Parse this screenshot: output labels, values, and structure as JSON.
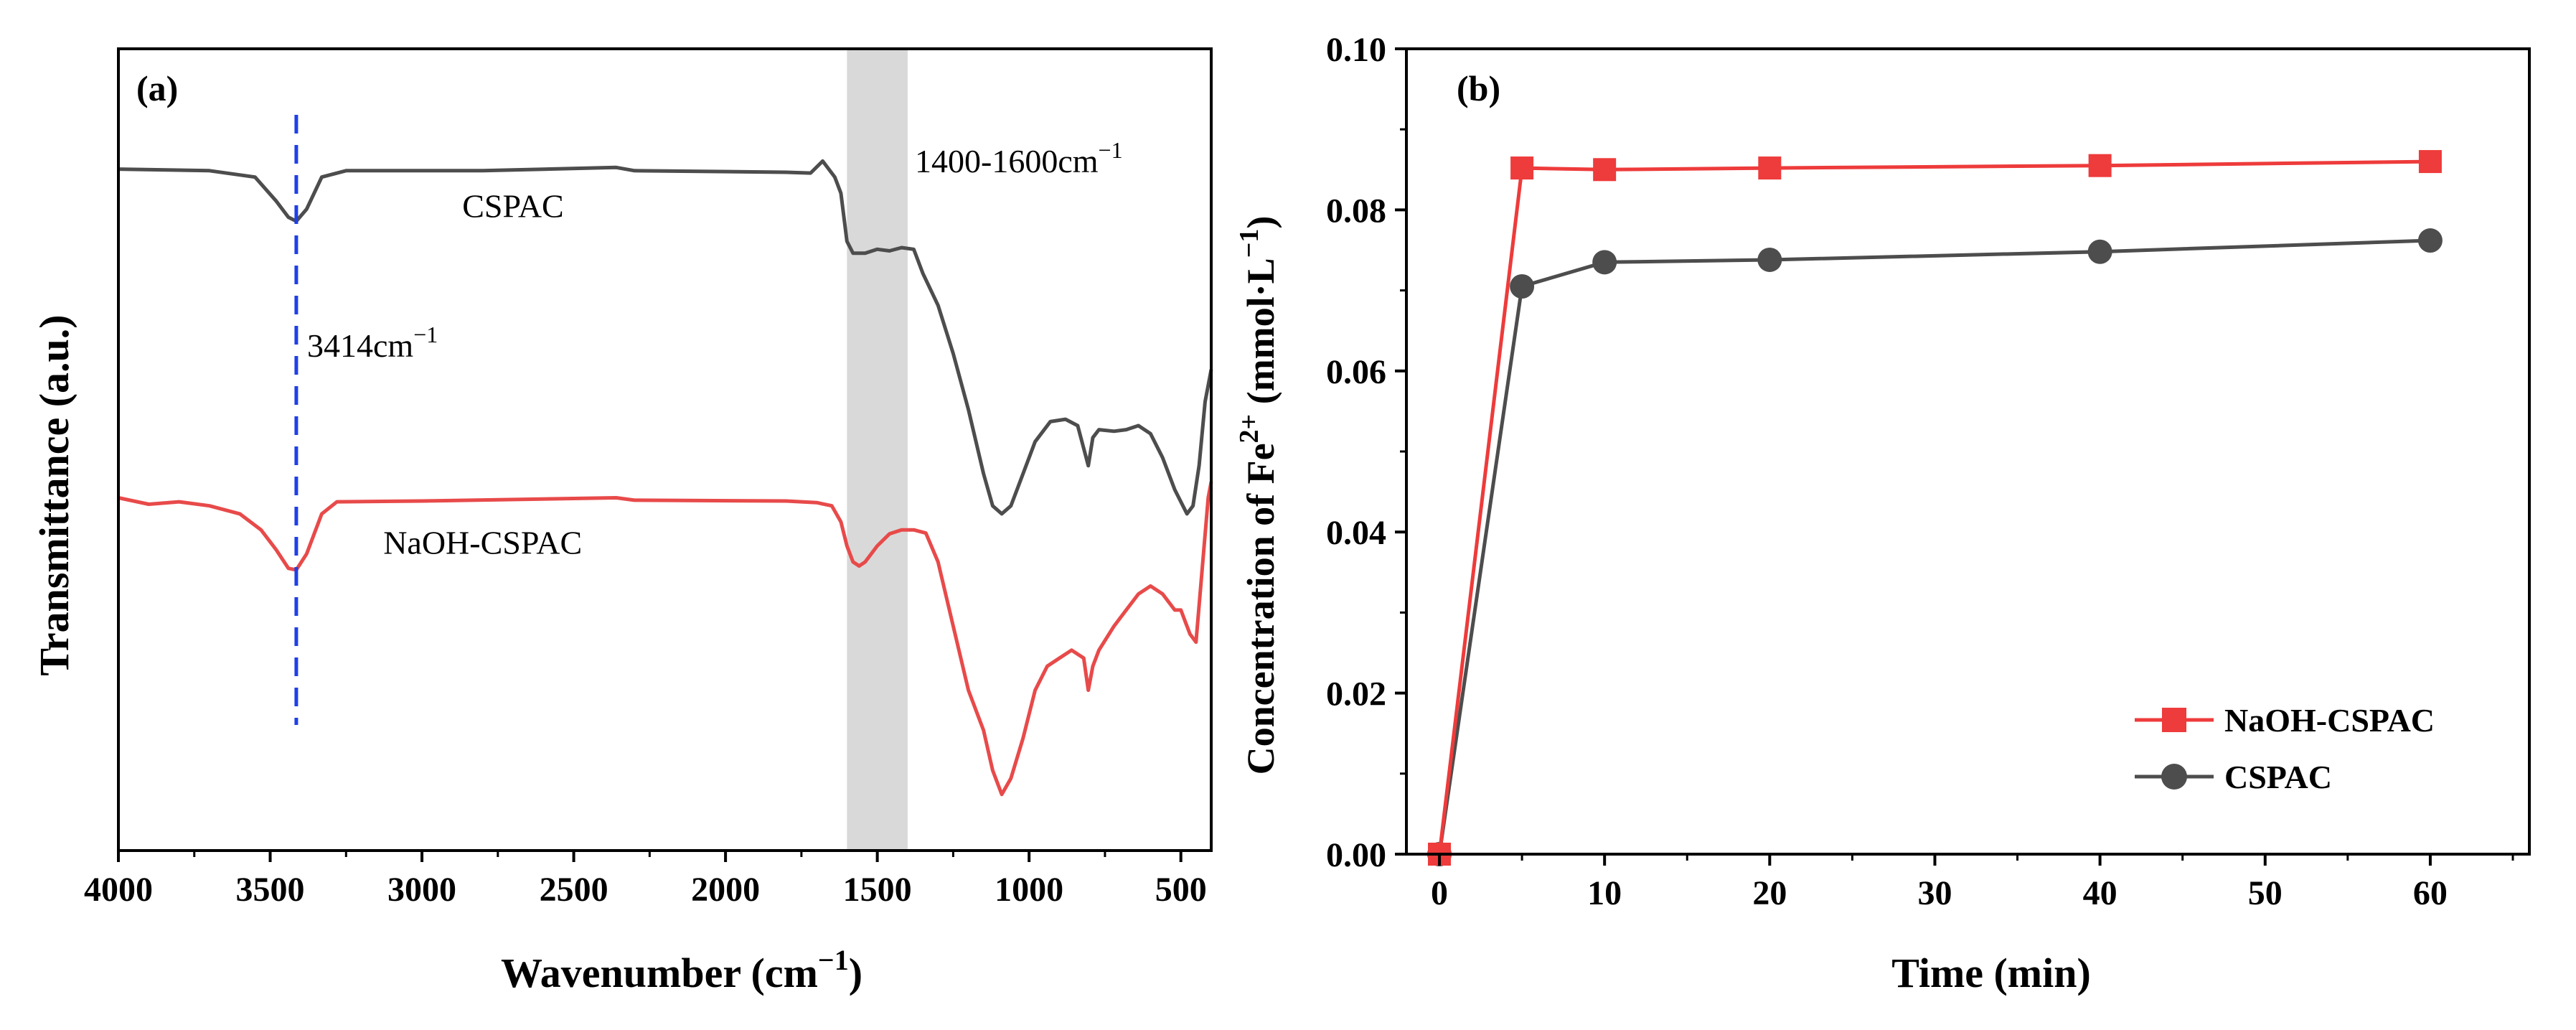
{
  "chart_data": [
    {
      "type": "line",
      "panel_label": "(a)",
      "xlabel": "Wavenumber (cm",
      "xlabel_sup": "−1",
      "xlabel_end": ")",
      "ylabel": "Transmittance (a.u.)",
      "xlim": [
        4000,
        400
      ],
      "x_reversed": true,
      "xticks": [
        4000,
        3500,
        3000,
        2500,
        2000,
        1500,
        1000,
        500
      ],
      "yticks_shown": false,
      "shaded_band": {
        "x_from": 1600,
        "x_to": 1400,
        "color": "#d9d9d9",
        "label": "1400-1600cm",
        "label_sup": "−1"
      },
      "marker_line": {
        "x": 3414,
        "color": "#1f3fe6",
        "style": "dashed",
        "label": "3414cm",
        "label_sup": "−1"
      },
      "series": [
        {
          "name": "CSPAC",
          "color": "#4d4d4d",
          "points": [
            [
              4000,
              0.85
            ],
            [
              3700,
              0.848
            ],
            [
              3550,
              0.84
            ],
            [
              3480,
              0.81
            ],
            [
              3440,
              0.79
            ],
            [
              3414,
              0.785
            ],
            [
              3380,
              0.8
            ],
            [
              3330,
              0.84
            ],
            [
              3250,
              0.848
            ],
            [
              2800,
              0.848
            ],
            [
              2360,
              0.852
            ],
            [
              2300,
              0.848
            ],
            [
              1800,
              0.846
            ],
            [
              1720,
              0.845
            ],
            [
              1680,
              0.86
            ],
            [
              1640,
              0.84
            ],
            [
              1620,
              0.82
            ],
            [
              1600,
              0.76
            ],
            [
              1580,
              0.745
            ],
            [
              1540,
              0.745
            ],
            [
              1500,
              0.75
            ],
            [
              1460,
              0.748
            ],
            [
              1420,
              0.752
            ],
            [
              1380,
              0.75
            ],
            [
              1350,
              0.72
            ],
            [
              1300,
              0.68
            ],
            [
              1250,
              0.62
            ],
            [
              1200,
              0.55
            ],
            [
              1150,
              0.47
            ],
            [
              1120,
              0.43
            ],
            [
              1090,
              0.42
            ],
            [
              1060,
              0.43
            ],
            [
              1030,
              0.46
            ],
            [
              980,
              0.51
            ],
            [
              930,
              0.535
            ],
            [
              880,
              0.538
            ],
            [
              840,
              0.53
            ],
            [
              805,
              0.48
            ],
            [
              790,
              0.515
            ],
            [
              770,
              0.525
            ],
            [
              720,
              0.523
            ],
            [
              680,
              0.525
            ],
            [
              640,
              0.53
            ],
            [
              600,
              0.52
            ],
            [
              560,
              0.49
            ],
            [
              520,
              0.45
            ],
            [
              480,
              0.42
            ],
            [
              460,
              0.43
            ],
            [
              440,
              0.48
            ],
            [
              420,
              0.56
            ],
            [
              400,
              0.6
            ]
          ]
        },
        {
          "name": "NaOH-CSPAC",
          "color": "#e84a4a",
          "points": [
            [
              4000,
              0.44
            ],
            [
              3900,
              0.432
            ],
            [
              3800,
              0.435
            ],
            [
              3700,
              0.43
            ],
            [
              3600,
              0.42
            ],
            [
              3530,
              0.4
            ],
            [
              3480,
              0.375
            ],
            [
              3440,
              0.352
            ],
            [
              3414,
              0.35
            ],
            [
              3380,
              0.37
            ],
            [
              3330,
              0.42
            ],
            [
              3280,
              0.435
            ],
            [
              3000,
              0.436
            ],
            [
              2360,
              0.44
            ],
            [
              2300,
              0.437
            ],
            [
              1800,
              0.436
            ],
            [
              1700,
              0.434
            ],
            [
              1650,
              0.43
            ],
            [
              1620,
              0.41
            ],
            [
              1600,
              0.38
            ],
            [
              1580,
              0.36
            ],
            [
              1560,
              0.355
            ],
            [
              1540,
              0.36
            ],
            [
              1500,
              0.38
            ],
            [
              1460,
              0.395
            ],
            [
              1420,
              0.4
            ],
            [
              1380,
              0.4
            ],
            [
              1340,
              0.396
            ],
            [
              1300,
              0.36
            ],
            [
              1250,
              0.28
            ],
            [
              1200,
              0.2
            ],
            [
              1150,
              0.15
            ],
            [
              1120,
              0.1
            ],
            [
              1090,
              0.07
            ],
            [
              1060,
              0.09
            ],
            [
              1020,
              0.14
            ],
            [
              980,
              0.2
            ],
            [
              940,
              0.23
            ],
            [
              900,
              0.24
            ],
            [
              860,
              0.25
            ],
            [
              820,
              0.24
            ],
            [
              805,
              0.2
            ],
            [
              790,
              0.23
            ],
            [
              770,
              0.25
            ],
            [
              720,
              0.28
            ],
            [
              680,
              0.3
            ],
            [
              640,
              0.32
            ],
            [
              600,
              0.33
            ],
            [
              560,
              0.32
            ],
            [
              520,
              0.3
            ],
            [
              500,
              0.3
            ],
            [
              470,
              0.27
            ],
            [
              450,
              0.26
            ],
            [
              430,
              0.35
            ],
            [
              410,
              0.44
            ],
            [
              400,
              0.46
            ]
          ]
        }
      ],
      "series_labels": [
        {
          "text": "CSPAC",
          "x": 2700,
          "y": 0.79
        },
        {
          "text": "NaOH-CSPAC",
          "x": 2800,
          "y": 0.37
        }
      ]
    },
    {
      "type": "line",
      "panel_label": "(b)",
      "xlabel": "Time (min)",
      "ylabel": "Concentration of Fe",
      "ylabel_sup": "2+",
      "ylabel_end": " (mmol·L",
      "ylabel_sup2": "−1",
      "ylabel_close": ")",
      "xlim": [
        -2,
        66
      ],
      "ylim": [
        0,
        0.1
      ],
      "xticks": [
        0,
        10,
        20,
        30,
        40,
        50,
        60
      ],
      "yticks": [
        "0.00",
        "0.02",
        "0.04",
        "0.06",
        "0.08",
        "0.10"
      ],
      "legend_position": "bottom-right",
      "series": [
        {
          "name": "NaOH-CSPAC",
          "color": "#ee3b3b",
          "marker": "square",
          "x": [
            0,
            5,
            10,
            20,
            40,
            60
          ],
          "y": [
            0,
            0.0852,
            0.085,
            0.0852,
            0.0855,
            0.086
          ]
        },
        {
          "name": "CSPAC",
          "color": "#4d4d4d",
          "marker": "circle",
          "x": [
            0,
            5,
            10,
            20,
            40,
            60
          ],
          "y": [
            0,
            0.0705,
            0.0735,
            0.0738,
            0.0748,
            0.0762
          ]
        }
      ]
    }
  ]
}
